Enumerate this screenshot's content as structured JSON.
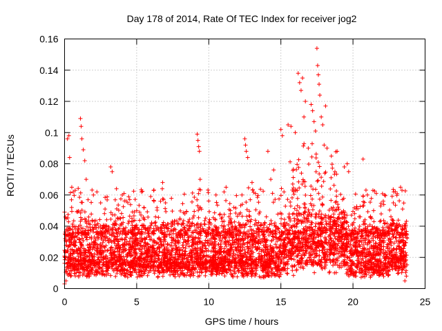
{
  "chart_data": {
    "type": "scatter",
    "title": "Day 178 of 2014, Rate Of TEC Index for receiver jog2",
    "xlabel": "GPS time / hours",
    "ylabel": "ROTI / TECUs",
    "xlim": [
      0,
      25
    ],
    "ylim": [
      0,
      0.16
    ],
    "xticks": [
      0,
      5,
      10,
      15,
      20,
      25
    ],
    "xtick_labels": [
      "0",
      "5",
      "10",
      "15",
      "20",
      "25"
    ],
    "yticks": [
      0,
      0.02,
      0.04,
      0.06,
      0.08,
      0.1,
      0.12,
      0.14,
      0.16
    ],
    "ytick_labels": [
      "0",
      "0.02",
      "0.04",
      "0.06",
      "0.08",
      "0.1",
      "0.12",
      "0.14",
      "0.16"
    ],
    "grid": true,
    "marker": "plus",
    "color": "#ff0000",
    "series": [
      {
        "name": "ROTI",
        "x_range": [
          0,
          23.75
        ],
        "points": [
          [
            0.0,
            0.003
          ],
          [
            0.1,
            0.005
          ],
          [
            0.2,
            0.096
          ],
          [
            0.3,
            0.098
          ],
          [
            0.35,
            0.084
          ],
          [
            0.5,
            0.065
          ],
          [
            0.6,
            0.062
          ],
          [
            1.1,
            0.109
          ],
          [
            1.15,
            0.104
          ],
          [
            1.2,
            0.096
          ],
          [
            1.3,
            0.089
          ],
          [
            1.4,
            0.082
          ],
          [
            1.5,
            0.07
          ],
          [
            2.0,
            0.06
          ],
          [
            2.5,
            0.055
          ],
          [
            3.2,
            0.078
          ],
          [
            3.3,
            0.075
          ],
          [
            3.6,
            0.064
          ],
          [
            4.0,
            0.06
          ],
          [
            5.0,
            0.05
          ],
          [
            5.5,
            0.052
          ],
          [
            6.2,
            0.056
          ],
          [
            6.8,
            0.068
          ],
          [
            7.0,
            0.055
          ],
          [
            8.0,
            0.045
          ],
          [
            9.2,
            0.099
          ],
          [
            9.25,
            0.095
          ],
          [
            9.3,
            0.091
          ],
          [
            9.35,
            0.088
          ],
          [
            9.4,
            0.07
          ],
          [
            10.5,
            0.06
          ],
          [
            11.2,
            0.065
          ],
          [
            11.5,
            0.05
          ],
          [
            12.3,
            0.06
          ],
          [
            12.5,
            0.096
          ],
          [
            12.55,
            0.092
          ],
          [
            12.6,
            0.088
          ],
          [
            12.7,
            0.084
          ],
          [
            13.0,
            0.068
          ],
          [
            14.1,
            0.088
          ],
          [
            14.3,
            0.07
          ],
          [
            14.5,
            0.076
          ],
          [
            15.0,
            0.102
          ],
          [
            15.1,
            0.098
          ],
          [
            15.5,
            0.105
          ],
          [
            15.7,
            0.104
          ],
          [
            16.0,
            0.1
          ],
          [
            16.2,
            0.138
          ],
          [
            16.3,
            0.132
          ],
          [
            16.4,
            0.127
          ],
          [
            16.5,
            0.135
          ],
          [
            16.6,
            0.11
          ],
          [
            16.7,
            0.12
          ],
          [
            16.9,
            0.09
          ],
          [
            17.1,
            0.118
          ],
          [
            17.2,
            0.114
          ],
          [
            17.3,
            0.107
          ],
          [
            17.4,
            0.101
          ],
          [
            17.5,
            0.154
          ],
          [
            17.55,
            0.143
          ],
          [
            17.6,
            0.137
          ],
          [
            17.65,
            0.131
          ],
          [
            17.7,
            0.124
          ],
          [
            17.8,
            0.11
          ],
          [
            17.9,
            0.105
          ],
          [
            18.0,
            0.092
          ],
          [
            18.1,
            0.117
          ],
          [
            18.2,
            0.09
          ],
          [
            18.5,
            0.085
          ],
          [
            18.9,
            0.088
          ],
          [
            19.4,
            0.078
          ],
          [
            19.6,
            0.08
          ],
          [
            19.7,
            0.075
          ],
          [
            20.7,
            0.083
          ],
          [
            21.0,
            0.06
          ],
          [
            22.2,
            0.06
          ],
          [
            22.8,
            0.055
          ],
          [
            23.3,
            0.065
          ],
          [
            23.4,
            0.063
          ],
          [
            23.6,
            0.005
          ],
          [
            23.7,
            0.008
          ]
        ]
      }
    ],
    "band_note": "dense baseline band of points roughly between 0.005 and 0.045 across the full time range"
  }
}
